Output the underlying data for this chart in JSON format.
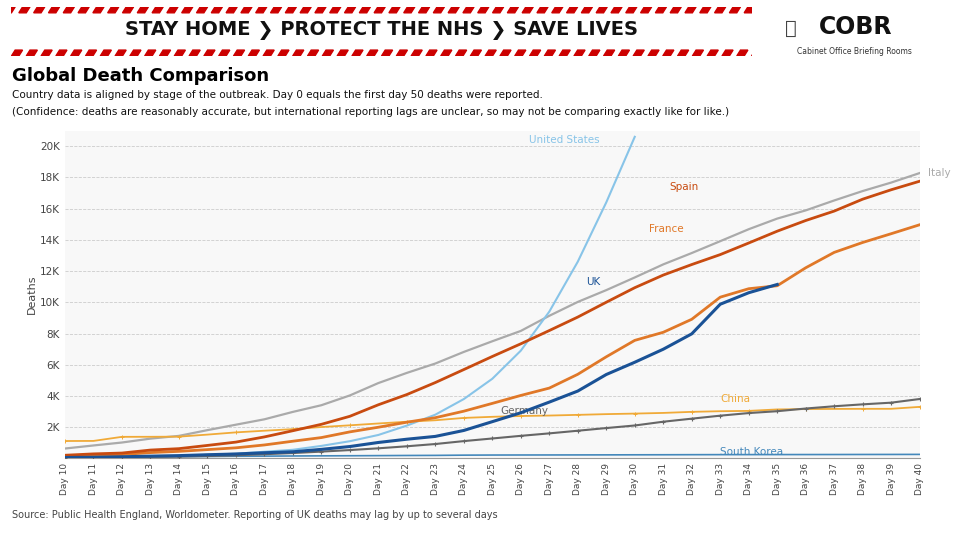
{
  "title": "Global Death Comparison",
  "subtitle1": "Country data is aligned by stage of the outbreak. Day 0 equals the first day 50 deaths were reported.",
  "subtitle2": "(Confidence: deaths are reasonably accurate, but international reporting lags are unclear, so may not be comparing exactly like for like.)",
  "source": "Source: Public Health England, Worldometer. Reporting of UK deaths may lag by up to several days",
  "banner_text": "STAY HOME ❯ PROTECT THE NHS ❯ SAVE LIVES",
  "cobr_text": "COBR",
  "cobr_sub": "Cabinet Office Briefing Rooms",
  "x_labels": [
    "Day 10",
    "Day 11",
    "Day 12",
    "Day 13",
    "Day 14",
    "Day 15",
    "Day 16",
    "Day 17",
    "Day 18",
    "Day 19",
    "Day 20",
    "Day 21",
    "Day 22",
    "Day 23",
    "Day 24",
    "Day 25",
    "Day 26",
    "Day 27",
    "Day 28",
    "Day 29",
    "Day 30",
    "Day 31",
    "Day 32",
    "Day 33",
    "Day 34",
    "Day 35",
    "Day 36",
    "Day 37",
    "Day 38",
    "Day 39",
    "Day 40"
  ],
  "yticks": [
    0,
    2000,
    4000,
    6000,
    8000,
    10000,
    12000,
    14000,
    16000,
    18000,
    20000
  ],
  "ytick_labels": [
    "",
    "2K",
    "4K",
    "6K",
    "8K",
    "10K",
    "12K",
    "14K",
    "16K",
    "18K",
    "20K"
  ],
  "italy": [
    631,
    827,
    1016,
    1266,
    1441,
    1809,
    2158,
    2503,
    2978,
    3405,
    4032,
    4825,
    5476,
    6077,
    6820,
    7503,
    8165,
    9134,
    10023,
    10779,
    11591,
    12428,
    13155,
    13915,
    14681,
    15362,
    15887,
    16523,
    17127,
    17669,
    18279
  ],
  "spain": [
    200,
    288,
    342,
    533,
    623,
    830,
    1043,
    1375,
    1772,
    2182,
    2696,
    3434,
    4089,
    4858,
    5690,
    6528,
    7340,
    8189,
    9053,
    10003,
    10935,
    11744,
    12418,
    13055,
    13798,
    14555,
    15238,
    15843,
    16606,
    17209,
    17756
  ],
  "france": [
    148,
    175,
    244,
    372,
    450,
    562,
    676,
    860,
    1100,
    1333,
    1698,
    1995,
    2317,
    2606,
    3024,
    3523,
    4032,
    4503,
    5387,
    6507,
    7560,
    8078,
    8911,
    10328,
    10869,
    11060,
    12210,
    13197,
    13832,
    14393,
    14967
  ],
  "uk": [
    56,
    72,
    103,
    144,
    177,
    233,
    281,
    360,
    422,
    578,
    759,
    1019,
    1228,
    1408,
    1789,
    2352,
    2921,
    3605,
    4313,
    5373,
    6159,
    6993,
    7978,
    9875,
    10612,
    11141
  ],
  "us": [
    50,
    55,
    80,
    110,
    150,
    225,
    300,
    425,
    550,
    800,
    1100,
    1500,
    2100,
    2800,
    3800,
    5100,
    6900,
    9400,
    12600,
    16400,
    20600
  ],
  "germany": [
    50,
    60,
    72,
    94,
    116,
    152,
    198,
    267,
    342,
    433,
    533,
    645,
    775,
    920,
    1107,
    1275,
    1444,
    1602,
    1771,
    1943,
    2107,
    2349,
    2544,
    2736,
    2903,
    3022,
    3194,
    3339,
    3462,
    3569,
    3804
  ],
  "china": [
    1113,
    1118,
    1380,
    1383,
    1392,
    1523,
    1666,
    1772,
    1873,
    2009,
    2118,
    2236,
    2349,
    2442,
    2592,
    2663,
    2715,
    2744,
    2788,
    2835,
    2870,
    2912,
    2981,
    3022,
    3042,
    3136,
    3158,
    3169,
    3174,
    3176,
    3300
  ],
  "south_korea": [
    75,
    84,
    91,
    102,
    111,
    120,
    138,
    144,
    154,
    162,
    169,
    177,
    186,
    192,
    207,
    214,
    217,
    219,
    222,
    225,
    229,
    232,
    237,
    240,
    242,
    244,
    245,
    247,
    250,
    252,
    255
  ],
  "colors": {
    "italy": "#aaaaaa",
    "spain": "#c84b10",
    "france": "#e07828",
    "uk": "#1a5296",
    "us": "#88c4e8",
    "germany": "#666666",
    "china": "#f0aa38",
    "south_korea": "#4488bb"
  },
  "bg_color": "#ffffff",
  "plot_bg_color": "#f8f8f8",
  "grid_color": "#cccccc",
  "banner_color": "#f0f000",
  "banner_stripe_color": "#cc0000",
  "banner_text_color": "#111111"
}
